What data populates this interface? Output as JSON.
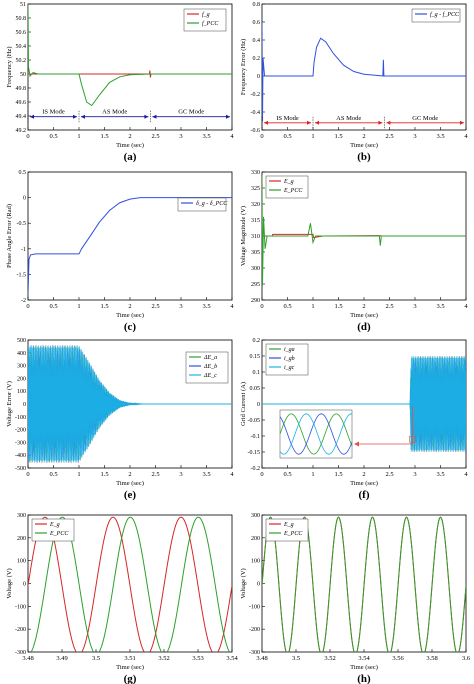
{
  "figure": {
    "panels": [
      {
        "id": "a",
        "caption": "(a)",
        "xlabel": "Time (sec)",
        "ylabel": "Frequency (Hz)"
      },
      {
        "id": "b",
        "caption": "(b)",
        "xlabel": "Time (sec)",
        "ylabel": "Frequency Error (Hz)"
      },
      {
        "id": "c",
        "caption": "(c)",
        "xlabel": "Time (sec)",
        "ylabel": "Phase Angle Error (Rad)"
      },
      {
        "id": "d",
        "caption": "(d)",
        "xlabel": "Time (sec)",
        "ylabel": "Voltage Magnitude (V)"
      },
      {
        "id": "e",
        "caption": "(e)",
        "xlabel": "Time (sec)",
        "ylabel": "Voltage Error (V)"
      },
      {
        "id": "f",
        "caption": "(f)",
        "xlabel": "Time (sec)",
        "ylabel": "Grid Current (A)"
      },
      {
        "id": "g",
        "caption": "(g)",
        "xlabel": "Time (sec)",
        "ylabel": "Voltage (V)"
      },
      {
        "id": "h",
        "caption": "(h)",
        "xlabel": "Time (sec)",
        "ylabel": "Voltage (V)"
      }
    ],
    "colors": {
      "red": "#d62728",
      "green": "#2ca02c",
      "blue": "#3050e0",
      "cyan": "#1ab3e6",
      "axis": "#000000",
      "mode_arrow": "#1a1aa0",
      "mode_arrow_b": "#e02020"
    }
  },
  "chart_data": [
    {
      "id": "a",
      "type": "line",
      "xlim": [
        0,
        4
      ],
      "ylim": [
        49.2,
        51
      ],
      "xticks": [
        "0",
        "0.5",
        "1",
        "1.5",
        "2",
        "2.5",
        "3",
        "3.5",
        "4"
      ],
      "yticks": [
        "49.2",
        "49.4",
        "49.6",
        "49.8",
        "50",
        "50.2",
        "50.4",
        "50.6",
        "50.8",
        "51"
      ],
      "legend": [
        "f_g",
        "f_PCC"
      ],
      "modes": [
        {
          "label": "IS Mode",
          "x0": 0,
          "x1": 1
        },
        {
          "label": "AS Mode",
          "x0": 1,
          "x1": 2.4
        },
        {
          "label": "GC Mode",
          "x0": 2.4,
          "x1": 4
        }
      ],
      "series": [
        {
          "name": "f_g",
          "color": "red",
          "points": [
            [
              0,
              50
            ],
            [
              2.38,
              50
            ],
            [
              2.39,
              50.05
            ],
            [
              2.4,
              49.95
            ],
            [
              2.41,
              50
            ],
            [
              4,
              50
            ]
          ]
        },
        {
          "name": "f_PCC",
          "color": "green",
          "points": [
            [
              0,
              51
            ],
            [
              0.01,
              50.1
            ],
            [
              0.04,
              49.97
            ],
            [
              0.1,
              50.02
            ],
            [
              0.2,
              50
            ],
            [
              1,
              50
            ],
            [
              1.05,
              49.85
            ],
            [
              1.15,
              49.6
            ],
            [
              1.25,
              49.55
            ],
            [
              1.4,
              49.7
            ],
            [
              1.6,
              49.88
            ],
            [
              1.8,
              49.96
            ],
            [
              2,
              49.99
            ],
            [
              2.4,
              50
            ],
            [
              4,
              50
            ]
          ]
        }
      ]
    },
    {
      "id": "b",
      "type": "line",
      "xlim": [
        0,
        4
      ],
      "ylim": [
        -0.6,
        0.8
      ],
      "xticks": [
        "0",
        "0.5",
        "1",
        "1.5",
        "2",
        "2.5",
        "3",
        "3.5",
        "4"
      ],
      "yticks": [
        "-0.6",
        "-0.4",
        "-0.2",
        "0",
        "0.2",
        "0.4",
        "0.6",
        "0.8"
      ],
      "legend": [
        "f_g - f_PCC"
      ],
      "modes": [
        {
          "label": "IS Mode",
          "x0": 0,
          "x1": 1
        },
        {
          "label": "AS Mode",
          "x0": 1,
          "x1": 2.4
        },
        {
          "label": "GC Mode",
          "x0": 2.4,
          "x1": 4
        }
      ],
      "series": [
        {
          "name": "f_g - f_PCC",
          "color": "blue",
          "points": [
            [
              0,
              0.6
            ],
            [
              0.01,
              -0.5
            ],
            [
              0.02,
              0.2
            ],
            [
              0.05,
              0
            ],
            [
              1,
              0
            ],
            [
              1.02,
              0.15
            ],
            [
              1.07,
              0.32
            ],
            [
              1.15,
              0.42
            ],
            [
              1.25,
              0.38
            ],
            [
              1.4,
              0.25
            ],
            [
              1.6,
              0.12
            ],
            [
              1.8,
              0.05
            ],
            [
              2,
              0.02
            ],
            [
              2.37,
              0
            ],
            [
              2.38,
              0.18
            ],
            [
              2.39,
              0
            ],
            [
              4,
              0
            ]
          ]
        }
      ]
    },
    {
      "id": "c",
      "type": "line",
      "xlim": [
        0,
        4
      ],
      "ylim": [
        -2,
        0.5
      ],
      "xticks": [
        "0",
        "0.5",
        "1",
        "1.5",
        "2",
        "2.5",
        "3",
        "3.5",
        "4"
      ],
      "yticks": [
        "-2",
        "-1.5",
        "-1",
        "-0.5",
        "0",
        "0.5"
      ],
      "legend": [
        "δ_g - δ_PCC"
      ],
      "series": [
        {
          "name": "δ_g - δ_PCC",
          "color": "blue",
          "points": [
            [
              0,
              -1.9
            ],
            [
              0.02,
              -1.2
            ],
            [
              0.05,
              -1.12
            ],
            [
              0.15,
              -1.1
            ],
            [
              1,
              -1.1
            ],
            [
              1.05,
              -1.0
            ],
            [
              1.2,
              -0.78
            ],
            [
              1.4,
              -0.48
            ],
            [
              1.6,
              -0.25
            ],
            [
              1.8,
              -0.1
            ],
            [
              2,
              -0.03
            ],
            [
              2.2,
              0
            ],
            [
              4,
              0
            ]
          ]
        }
      ]
    },
    {
      "id": "d",
      "type": "line",
      "xlim": [
        0,
        4
      ],
      "ylim": [
        290,
        330
      ],
      "xticks": [
        "0",
        "0.5",
        "1",
        "1.5",
        "2",
        "2.5",
        "3",
        "3.5",
        "4"
      ],
      "yticks": [
        "290",
        "295",
        "300",
        "305",
        "310",
        "315",
        "320",
        "325",
        "330"
      ],
      "legend": [
        "E_g",
        "E_PCC"
      ],
      "series": [
        {
          "name": "E_g",
          "color": "red",
          "points": [
            [
              0,
              310
            ],
            [
              0.2,
              310
            ],
            [
              0.21,
              310.5
            ],
            [
              1.0,
              310.5
            ],
            [
              1.01,
              309.5
            ],
            [
              1.2,
              310
            ],
            [
              2.3,
              310.1
            ],
            [
              2.35,
              310
            ],
            [
              4,
              310
            ]
          ]
        },
        {
          "name": "E_PCC",
          "color": "green",
          "points": [
            [
              0,
              329
            ],
            [
              0.01,
              295
            ],
            [
              0.03,
              316
            ],
            [
              0.06,
              306
            ],
            [
              0.1,
              310
            ],
            [
              0.9,
              310
            ],
            [
              0.95,
              314
            ],
            [
              1.0,
              308
            ],
            [
              1.05,
              310
            ],
            [
              2.3,
              310
            ],
            [
              2.32,
              307
            ],
            [
              2.34,
              310
            ],
            [
              4,
              310
            ]
          ]
        }
      ]
    },
    {
      "id": "e",
      "type": "area",
      "xlim": [
        0,
        4
      ],
      "ylim": [
        -500,
        500
      ],
      "xticks": [
        "0",
        "0.5",
        "1",
        "1.5",
        "2",
        "2.5",
        "3",
        "3.5",
        "4"
      ],
      "yticks": [
        "-500",
        "-400",
        "-300",
        "-200",
        "-100",
        "0",
        "100",
        "200",
        "300",
        "400",
        "500"
      ],
      "legend": [
        "ΔE_a",
        "ΔE_b",
        "ΔE_c"
      ],
      "envelope": [
        [
          0,
          460
        ],
        [
          1,
          460
        ],
        [
          1.2,
          330
        ],
        [
          1.4,
          190
        ],
        [
          1.6,
          90
        ],
        [
          1.8,
          30
        ],
        [
          2.0,
          8
        ],
        [
          2.3,
          0
        ],
        [
          4,
          0
        ]
      ]
    },
    {
      "id": "f",
      "type": "area",
      "xlim": [
        0,
        4
      ],
      "ylim": [
        -0.2,
        0.2
      ],
      "xticks": [
        "0",
        "0.5",
        "1",
        "1.5",
        "2",
        "2.5",
        "3",
        "3.5",
        "4"
      ],
      "yticks": [
        "-0.2",
        "-0.15",
        "-0.1",
        "-0.05",
        "0",
        "0.05",
        "0.1",
        "0.15",
        "0.2"
      ],
      "legend": [
        "i_ga",
        "i_gb",
        "i_gc"
      ],
      "envelope": [
        [
          0,
          0
        ],
        [
          2.9,
          0
        ],
        [
          2.92,
          0.15
        ],
        [
          4,
          0.15
        ]
      ]
    },
    {
      "id": "g",
      "type": "line",
      "xlim": [
        3.48,
        3.54
      ],
      "ylim": [
        -300,
        320
      ],
      "xticks": [
        "3.48",
        "3.49",
        "3.5",
        "3.51",
        "3.52",
        "3.53",
        "3.54"
      ],
      "yticks": [
        "-300",
        "-200",
        "-100",
        "0",
        "100",
        "200",
        "300"
      ],
      "legend": [
        "E_g",
        "E_PCC"
      ],
      "amplitude": 310,
      "frequency": 50,
      "series": [
        {
          "name": "E_g",
          "color": "red",
          "phase": 0
        },
        {
          "name": "E_PCC",
          "color": "green",
          "phase": -1.6
        }
      ]
    },
    {
      "id": "h",
      "type": "line",
      "xlim": [
        3.48,
        3.6
      ],
      "ylim": [
        -300,
        320
      ],
      "xticks": [
        "3.48",
        "3.5",
        "3.52",
        "3.54",
        "3.56",
        "3.58",
        "3.6"
      ],
      "yticks": [
        "-300",
        "-200",
        "-100",
        "0",
        "100",
        "200",
        "300"
      ],
      "legend": [
        "E_g",
        "E_PCC"
      ],
      "amplitude": 310,
      "frequency": 50,
      "series": [
        {
          "name": "E_g",
          "color": "red",
          "phase": 0
        },
        {
          "name": "E_PCC",
          "color": "green",
          "phase": 0
        }
      ]
    }
  ]
}
